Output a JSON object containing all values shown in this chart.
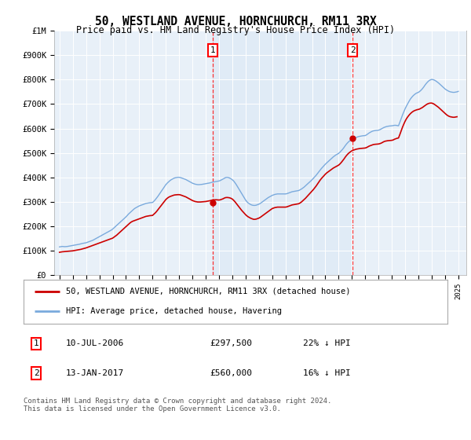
{
  "title": "50, WESTLAND AVENUE, HORNCHURCH, RM11 3RX",
  "subtitle": "Price paid vs. HM Land Registry's House Price Index (HPI)",
  "ylim": [
    0,
    1000000
  ],
  "yticks": [
    0,
    100000,
    200000,
    300000,
    400000,
    500000,
    600000,
    700000,
    800000,
    900000,
    1000000
  ],
  "ytick_labels": [
    "£0",
    "£100K",
    "£200K",
    "£300K",
    "£400K",
    "£500K",
    "£600K",
    "£700K",
    "£800K",
    "£900K",
    "£1M"
  ],
  "background_color": "#e8f0f8",
  "grid_color": "#ffffff",
  "hpi_color": "#7aaadd",
  "price_color": "#cc0000",
  "highlight_color": "#dae8f8",
  "sale1_x": 2006.53,
  "sale1_price": 297500,
  "sale2_x": 2017.04,
  "sale2_price": 560000,
  "legend_line1": "50, WESTLAND AVENUE, HORNCHURCH, RM11 3RX (detached house)",
  "legend_line2": "HPI: Average price, detached house, Havering",
  "footer": "Contains HM Land Registry data © Crown copyright and database right 2024.\nThis data is licensed under the Open Government Licence v3.0.",
  "xlim_left": 1994.6,
  "xlim_right": 2025.6,
  "hpi_x": [
    1995.0,
    1995.1,
    1995.2,
    1995.3,
    1995.4,
    1995.5,
    1995.6,
    1995.7,
    1995.8,
    1995.9,
    1996.0,
    1996.1,
    1996.2,
    1996.3,
    1996.4,
    1996.5,
    1996.6,
    1996.7,
    1996.8,
    1996.9,
    1997.0,
    1997.1,
    1997.2,
    1997.3,
    1997.4,
    1997.5,
    1997.6,
    1997.7,
    1997.8,
    1997.9,
    1998.0,
    1998.1,
    1998.2,
    1998.3,
    1998.4,
    1998.5,
    1998.6,
    1998.7,
    1998.8,
    1998.9,
    1999.0,
    1999.1,
    1999.2,
    1999.3,
    1999.4,
    1999.5,
    1999.6,
    1999.7,
    1999.8,
    1999.9,
    2000.0,
    2000.1,
    2000.2,
    2000.3,
    2000.4,
    2000.5,
    2000.6,
    2000.7,
    2000.8,
    2000.9,
    2001.0,
    2001.1,
    2001.2,
    2001.3,
    2001.4,
    2001.5,
    2001.6,
    2001.7,
    2001.8,
    2001.9,
    2002.0,
    2002.1,
    2002.2,
    2002.3,
    2002.4,
    2002.5,
    2002.6,
    2002.7,
    2002.8,
    2002.9,
    2003.0,
    2003.1,
    2003.2,
    2003.3,
    2003.4,
    2003.5,
    2003.6,
    2003.7,
    2003.8,
    2003.9,
    2004.0,
    2004.1,
    2004.2,
    2004.3,
    2004.4,
    2004.5,
    2004.6,
    2004.7,
    2004.8,
    2004.9,
    2005.0,
    2005.1,
    2005.2,
    2005.3,
    2005.4,
    2005.5,
    2005.6,
    2005.7,
    2005.8,
    2005.9,
    2006.0,
    2006.1,
    2006.2,
    2006.3,
    2006.4,
    2006.5,
    2006.6,
    2006.7,
    2006.8,
    2006.9,
    2007.0,
    2007.1,
    2007.2,
    2007.3,
    2007.4,
    2007.5,
    2007.6,
    2007.7,
    2007.8,
    2007.9,
    2008.0,
    2008.1,
    2008.2,
    2008.3,
    2008.4,
    2008.5,
    2008.6,
    2008.7,
    2008.8,
    2008.9,
    2009.0,
    2009.1,
    2009.2,
    2009.3,
    2009.4,
    2009.5,
    2009.6,
    2009.7,
    2009.8,
    2009.9,
    2010.0,
    2010.1,
    2010.2,
    2010.3,
    2010.4,
    2010.5,
    2010.6,
    2010.7,
    2010.8,
    2010.9,
    2011.0,
    2011.1,
    2011.2,
    2011.3,
    2011.4,
    2011.5,
    2011.6,
    2011.7,
    2011.8,
    2011.9,
    2012.0,
    2012.1,
    2012.2,
    2012.3,
    2012.4,
    2012.5,
    2012.6,
    2012.7,
    2012.8,
    2012.9,
    2013.0,
    2013.1,
    2013.2,
    2013.3,
    2013.4,
    2013.5,
    2013.6,
    2013.7,
    2013.8,
    2013.9,
    2014.0,
    2014.1,
    2014.2,
    2014.3,
    2014.4,
    2014.5,
    2014.6,
    2014.7,
    2014.8,
    2014.9,
    2015.0,
    2015.1,
    2015.2,
    2015.3,
    2015.4,
    2015.5,
    2015.6,
    2015.7,
    2015.8,
    2015.9,
    2016.0,
    2016.1,
    2016.2,
    2016.3,
    2016.4,
    2016.5,
    2016.6,
    2016.7,
    2016.8,
    2016.9,
    2017.0,
    2017.1,
    2017.2,
    2017.3,
    2017.4,
    2017.5,
    2017.6,
    2017.7,
    2017.8,
    2017.9,
    2018.0,
    2018.1,
    2018.2,
    2018.3,
    2018.4,
    2018.5,
    2018.6,
    2018.7,
    2018.8,
    2018.9,
    2019.0,
    2019.1,
    2019.2,
    2019.3,
    2019.4,
    2019.5,
    2019.6,
    2019.7,
    2019.8,
    2019.9,
    2020.0,
    2020.1,
    2020.2,
    2020.3,
    2020.4,
    2020.5,
    2020.6,
    2020.7,
    2020.8,
    2020.9,
    2021.0,
    2021.1,
    2021.2,
    2021.3,
    2021.4,
    2021.5,
    2021.6,
    2021.7,
    2021.8,
    2021.9,
    2022.0,
    2022.1,
    2022.2,
    2022.3,
    2022.4,
    2022.5,
    2022.6,
    2022.7,
    2022.8,
    2022.9,
    2023.0,
    2023.1,
    2023.2,
    2023.3,
    2023.4,
    2023.5,
    2023.6,
    2023.7,
    2023.8,
    2023.9,
    2024.0,
    2024.1,
    2024.2,
    2024.3,
    2024.4,
    2024.5,
    2024.6,
    2024.7,
    2024.8,
    2024.9,
    2025.0
  ],
  "hpi_y": [
    115000,
    116000,
    117000,
    116500,
    116000,
    116500,
    117000,
    118000,
    119000,
    120000,
    121000,
    122000,
    123000,
    124000,
    125000,
    126000,
    127500,
    129000,
    130000,
    131000,
    132000,
    134000,
    136000,
    138000,
    140000,
    142000,
    145000,
    148000,
    151000,
    154000,
    157000,
    160000,
    163000,
    166000,
    169000,
    172000,
    175000,
    178000,
    181000,
    184000,
    188000,
    193000,
    198000,
    203000,
    208000,
    213000,
    218000,
    223000,
    228000,
    233000,
    238000,
    244000,
    250000,
    255000,
    260000,
    265000,
    270000,
    274000,
    277000,
    280000,
    283000,
    285000,
    287000,
    289000,
    291000,
    293000,
    294000,
    295000,
    296000,
    296500,
    297000,
    302000,
    308000,
    315000,
    322000,
    330000,
    338000,
    346000,
    354000,
    362000,
    370000,
    376000,
    381000,
    386000,
    390000,
    393000,
    396000,
    398000,
    399000,
    400000,
    400000,
    399000,
    397000,
    395000,
    393000,
    391000,
    388000,
    385000,
    382000,
    379000,
    376000,
    374000,
    372000,
    371000,
    370000,
    370000,
    370500,
    371000,
    372000,
    373000,
    374000,
    375000,
    376000,
    377000,
    378500,
    380000,
    381000,
    382000,
    383000,
    384000,
    385000,
    387000,
    390000,
    393000,
    396000,
    399000,
    400000,
    399000,
    397000,
    394000,
    390000,
    385000,
    378000,
    370000,
    361000,
    352000,
    343000,
    334000,
    325000,
    316000,
    307000,
    300000,
    295000,
    291000,
    288000,
    286000,
    285000,
    285000,
    286000,
    288000,
    290000,
    293000,
    297000,
    301000,
    305000,
    309000,
    313000,
    317000,
    320000,
    323000,
    326000,
    328000,
    330000,
    331000,
    332000,
    332000,
    332000,
    332000,
    332000,
    332000,
    332000,
    333000,
    335000,
    337000,
    339000,
    341000,
    342000,
    343000,
    344000,
    345000,
    346000,
    349000,
    352000,
    356000,
    360000,
    365000,
    370000,
    375000,
    380000,
    385000,
    390000,
    396000,
    402000,
    408000,
    415000,
    422000,
    429000,
    436000,
    442000,
    448000,
    454000,
    459000,
    464000,
    469000,
    474000,
    479000,
    484000,
    488000,
    492000,
    495000,
    498000,
    503000,
    509000,
    515000,
    522000,
    530000,
    537000,
    543000,
    548000,
    552000,
    555000,
    558000,
    561000,
    563000,
    565000,
    567000,
    568000,
    569000,
    570000,
    570500,
    571000,
    574000,
    578000,
    582000,
    585000,
    588000,
    590000,
    591000,
    592000,
    592500,
    593000,
    595000,
    598000,
    601000,
    604000,
    606000,
    608000,
    609000,
    610000,
    610500,
    611000,
    612000,
    613000,
    613000,
    612000,
    611000,
    625000,
    640000,
    655000,
    668000,
    681000,
    692000,
    702000,
    712000,
    721000,
    728000,
    734000,
    739000,
    743000,
    746000,
    748000,
    752000,
    757000,
    763000,
    770000,
    778000,
    785000,
    791000,
    796000,
    799000,
    801000,
    800000,
    798000,
    795000,
    791000,
    787000,
    782000,
    777000,
    772000,
    767000,
    762000,
    758000,
    755000,
    752000,
    750000,
    749000,
    748000,
    748000,
    749000,
    750000,
    752000
  ],
  "price_x": [
    1995.0,
    1995.1,
    1995.2,
    1995.3,
    1995.4,
    1995.5,
    1995.6,
    1995.7,
    1995.8,
    1995.9,
    1996.0,
    1996.1,
    1996.2,
    1996.3,
    1996.4,
    1996.5,
    1996.6,
    1996.7,
    1996.8,
    1996.9,
    1997.0,
    1997.1,
    1997.2,
    1997.3,
    1997.4,
    1997.5,
    1997.6,
    1997.7,
    1997.8,
    1997.9,
    1998.0,
    1998.1,
    1998.2,
    1998.3,
    1998.4,
    1998.5,
    1998.6,
    1998.7,
    1998.8,
    1998.9,
    1999.0,
    1999.1,
    1999.2,
    1999.3,
    1999.4,
    1999.5,
    1999.6,
    1999.7,
    1999.8,
    1999.9,
    2000.0,
    2000.1,
    2000.2,
    2000.3,
    2000.4,
    2000.5,
    2000.6,
    2000.7,
    2000.8,
    2000.9,
    2001.0,
    2001.1,
    2001.2,
    2001.3,
    2001.4,
    2001.5,
    2001.6,
    2001.7,
    2001.8,
    2001.9,
    2002.0,
    2002.1,
    2002.2,
    2002.3,
    2002.4,
    2002.5,
    2002.6,
    2002.7,
    2002.8,
    2002.9,
    2003.0,
    2003.1,
    2003.2,
    2003.3,
    2003.4,
    2003.5,
    2003.6,
    2003.7,
    2003.8,
    2003.9,
    2004.0,
    2004.1,
    2004.2,
    2004.3,
    2004.4,
    2004.5,
    2004.6,
    2004.7,
    2004.8,
    2004.9,
    2005.0,
    2005.1,
    2005.2,
    2005.3,
    2005.4,
    2005.5,
    2005.6,
    2005.7,
    2005.8,
    2005.9,
    2006.0,
    2006.1,
    2006.2,
    2006.3,
    2006.4,
    2006.5,
    2006.6,
    2006.7,
    2006.8,
    2006.9,
    2007.0,
    2007.1,
    2007.2,
    2007.3,
    2007.4,
    2007.5,
    2007.6,
    2007.7,
    2007.8,
    2007.9,
    2008.0,
    2008.1,
    2008.2,
    2008.3,
    2008.4,
    2008.5,
    2008.6,
    2008.7,
    2008.8,
    2008.9,
    2009.0,
    2009.1,
    2009.2,
    2009.3,
    2009.4,
    2009.5,
    2009.6,
    2009.7,
    2009.8,
    2009.9,
    2010.0,
    2010.1,
    2010.2,
    2010.3,
    2010.4,
    2010.5,
    2010.6,
    2010.7,
    2010.8,
    2010.9,
    2011.0,
    2011.1,
    2011.2,
    2011.3,
    2011.4,
    2011.5,
    2011.6,
    2011.7,
    2011.8,
    2011.9,
    2012.0,
    2012.1,
    2012.2,
    2012.3,
    2012.4,
    2012.5,
    2012.6,
    2012.7,
    2012.8,
    2012.9,
    2013.0,
    2013.1,
    2013.2,
    2013.3,
    2013.4,
    2013.5,
    2013.6,
    2013.7,
    2013.8,
    2013.9,
    2014.0,
    2014.1,
    2014.2,
    2014.3,
    2014.4,
    2014.5,
    2014.6,
    2014.7,
    2014.8,
    2014.9,
    2015.0,
    2015.1,
    2015.2,
    2015.3,
    2015.4,
    2015.5,
    2015.6,
    2015.7,
    2015.8,
    2015.9,
    2016.0,
    2016.1,
    2016.2,
    2016.3,
    2016.4,
    2016.5,
    2016.6,
    2016.7,
    2016.8,
    2016.9,
    2017.0,
    2017.1,
    2017.2,
    2017.3,
    2017.4,
    2017.5,
    2017.6,
    2017.7,
    2017.8,
    2017.9,
    2018.0,
    2018.1,
    2018.2,
    2018.3,
    2018.4,
    2018.5,
    2018.6,
    2018.7,
    2018.8,
    2018.9,
    2019.0,
    2019.1,
    2019.2,
    2019.3,
    2019.4,
    2019.5,
    2019.6,
    2019.7,
    2019.8,
    2019.9,
    2020.0,
    2020.1,
    2020.2,
    2020.3,
    2020.4,
    2020.5,
    2020.6,
    2020.7,
    2020.8,
    2020.9,
    2021.0,
    2021.1,
    2021.2,
    2021.3,
    2021.4,
    2021.5,
    2021.6,
    2021.7,
    2021.8,
    2021.9,
    2022.0,
    2022.1,
    2022.2,
    2022.3,
    2022.4,
    2022.5,
    2022.6,
    2022.7,
    2022.8,
    2022.9,
    2023.0,
    2023.1,
    2023.2,
    2023.3,
    2023.4,
    2023.5,
    2023.6,
    2023.7,
    2023.8,
    2023.9,
    2024.0,
    2024.1,
    2024.2,
    2024.3,
    2024.4,
    2024.5,
    2024.6,
    2024.7,
    2024.8,
    2024.9
  ],
  "price_y": [
    93000,
    94000,
    95000,
    95500,
    96000,
    96500,
    97000,
    97500,
    98000,
    98500,
    99000,
    100000,
    101000,
    102000,
    103000,
    104000,
    105000,
    106500,
    108000,
    109500,
    111000,
    113000,
    115000,
    117000,
    119000,
    121000,
    123000,
    125000,
    127000,
    129000,
    131000,
    133000,
    135000,
    137000,
    139000,
    141000,
    143000,
    145000,
    147000,
    149000,
    151000,
    155000,
    159000,
    163000,
    168000,
    173000,
    178000,
    183000,
    188000,
    193000,
    198000,
    203000,
    208000,
    213000,
    217000,
    220000,
    222000,
    224000,
    226000,
    228000,
    230000,
    232000,
    234000,
    236000,
    238000,
    240000,
    241000,
    242000,
    243000,
    243500,
    244000,
    249000,
    254000,
    260000,
    267000,
    274000,
    281000,
    288000,
    295000,
    302000,
    309000,
    314000,
    318000,
    321000,
    323000,
    325000,
    327000,
    328000,
    328500,
    329000,
    329000,
    328000,
    326000,
    324000,
    322000,
    320000,
    317000,
    314000,
    311000,
    308000,
    305000,
    303000,
    301000,
    300000,
    299000,
    299000,
    299000,
    299500,
    300000,
    300500,
    301000,
    302000,
    303000,
    304000,
    305500,
    307000,
    307500,
    308000,
    308000,
    307500,
    307000,
    308000,
    310000,
    312000,
    315000,
    317000,
    317500,
    317000,
    316000,
    314000,
    311000,
    306000,
    300000,
    293000,
    286000,
    279000,
    272000,
    265000,
    259000,
    253000,
    247000,
    242000,
    238000,
    235000,
    232000,
    230000,
    228000,
    228000,
    229000,
    231000,
    233000,
    236000,
    240000,
    244000,
    248000,
    252000,
    256000,
    260000,
    264000,
    268000,
    272000,
    274000,
    276000,
    277000,
    278000,
    278000,
    278000,
    278000,
    278000,
    278000,
    278000,
    279000,
    281000,
    283000,
    285000,
    287000,
    288000,
    289000,
    290000,
    291000,
    292000,
    295000,
    299000,
    304000,
    309000,
    314000,
    320000,
    326000,
    332000,
    338000,
    344000,
    350000,
    357000,
    364000,
    372000,
    380000,
    388000,
    395000,
    401000,
    407000,
    413000,
    418000,
    422000,
    426000,
    430000,
    434000,
    438000,
    441000,
    444000,
    447000,
    450000,
    455000,
    461000,
    468000,
    475000,
    483000,
    490000,
    496000,
    501000,
    505000,
    509000,
    511000,
    513000,
    515000,
    516000,
    517000,
    518000,
    518500,
    519000,
    519500,
    520000,
    522000,
    525000,
    528000,
    530000,
    532000,
    534000,
    535000,
    535500,
    536000,
    536500,
    538000,
    540000,
    543000,
    546000,
    548000,
    549000,
    550000,
    550500,
    551000,
    551500,
    553000,
    556000,
    558000,
    560000,
    561000,
    575000,
    590000,
    605000,
    618000,
    630000,
    640000,
    648000,
    655000,
    661000,
    666000,
    670000,
    673000,
    675000,
    677000,
    678000,
    680000,
    683000,
    686000,
    690000,
    694000,
    698000,
    701000,
    703000,
    704000,
    704000,
    702000,
    699000,
    695000,
    691000,
    687000,
    682000,
    677000,
    672000,
    667000,
    662000,
    657000,
    653000,
    650000,
    648000,
    647000,
    646000,
    646000,
    647000,
    648000
  ]
}
